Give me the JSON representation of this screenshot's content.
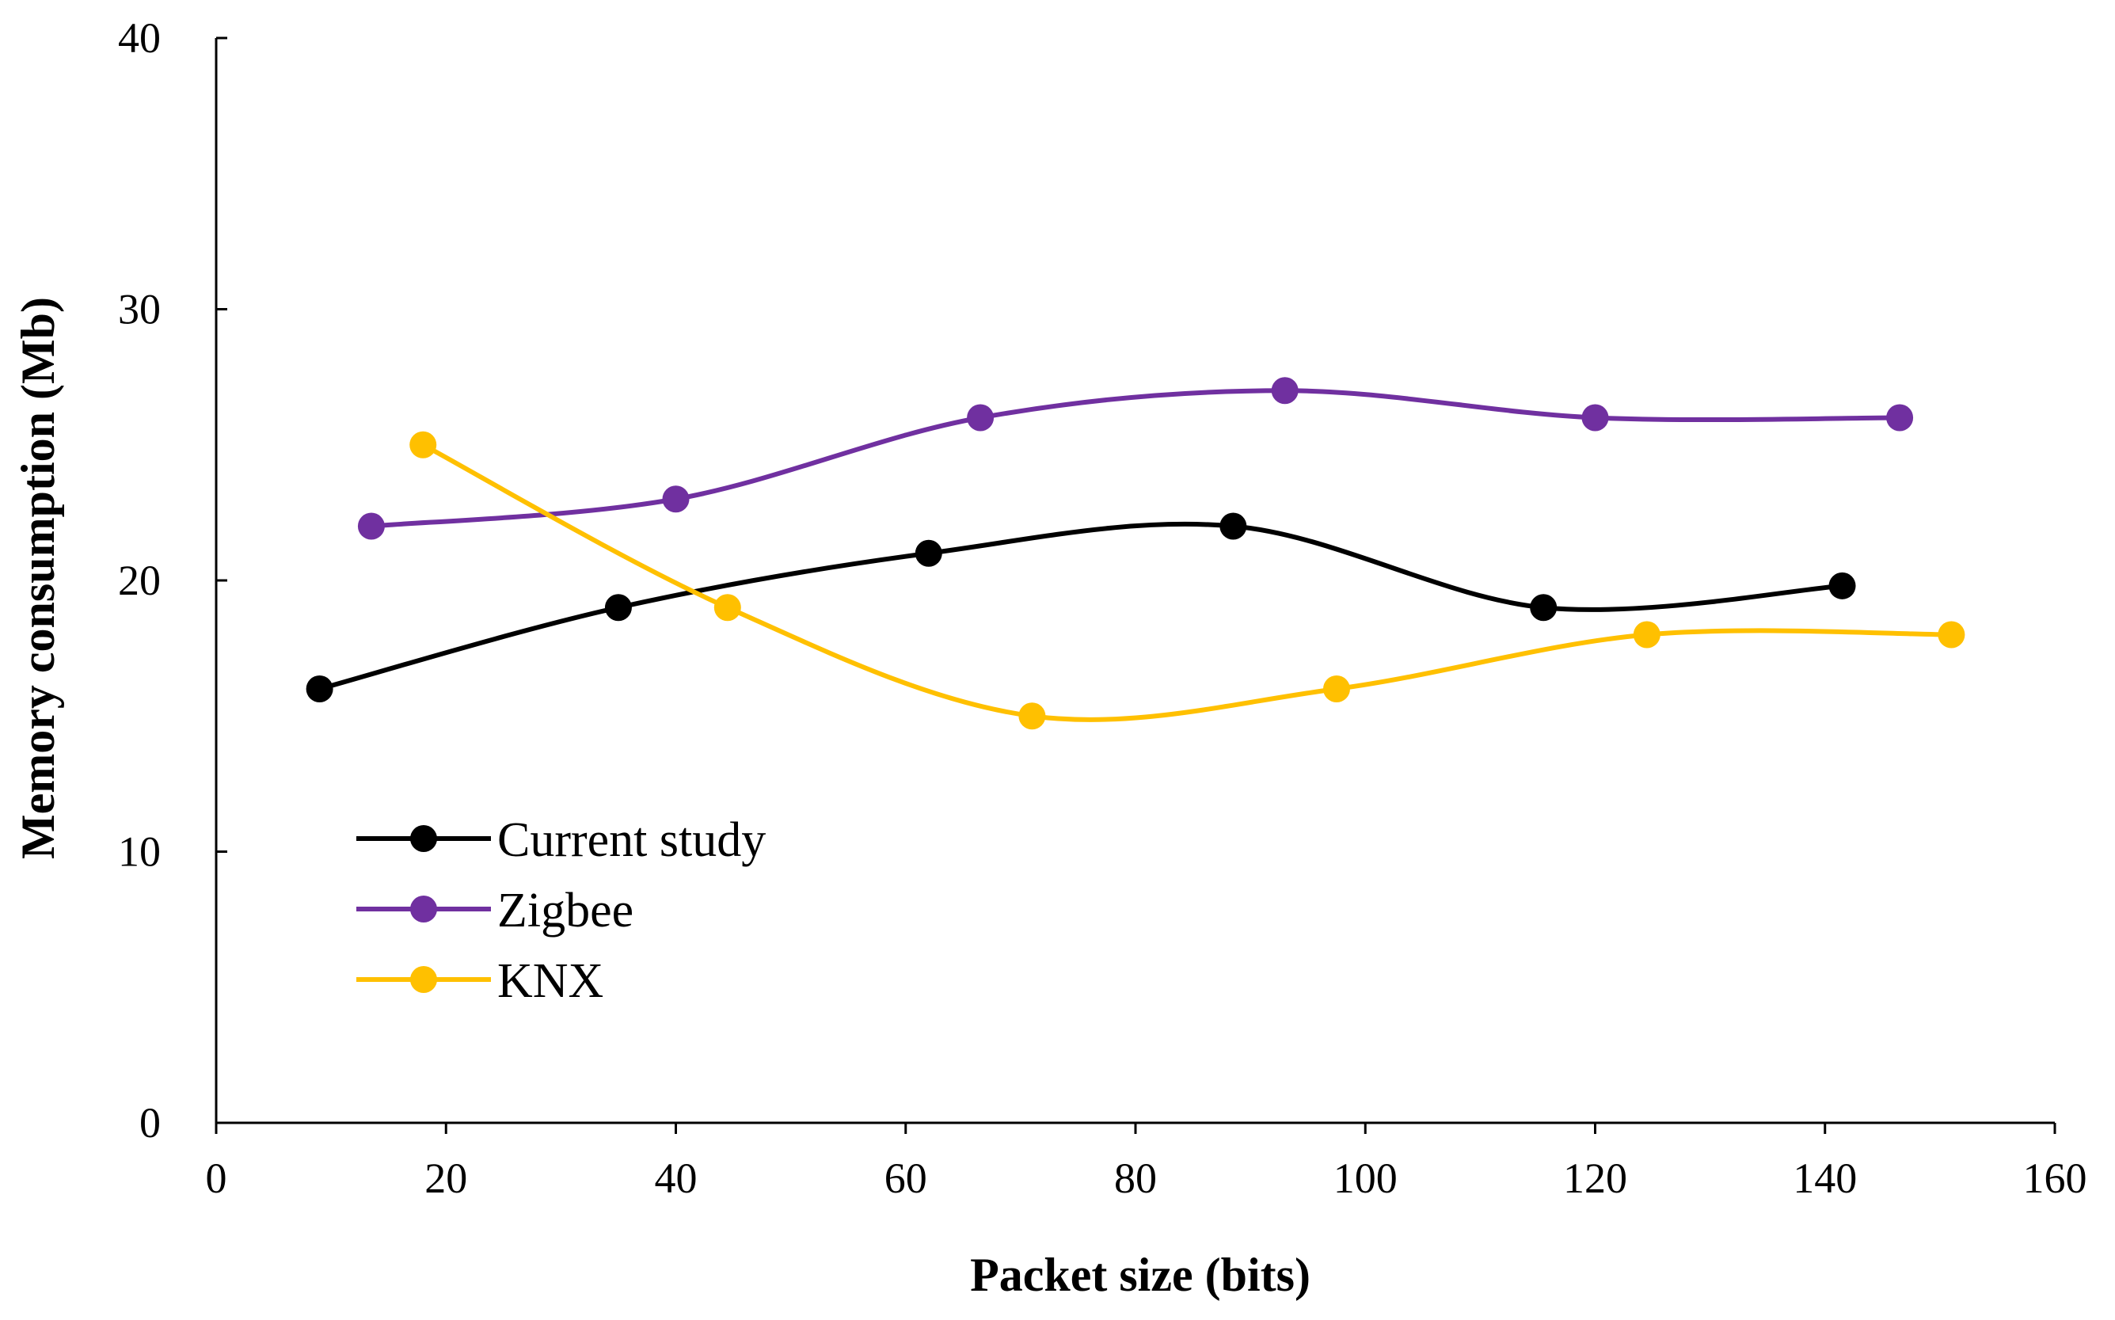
{
  "chart_data": {
    "type": "line",
    "title": "",
    "xlabel": "Packet size (bits)",
    "ylabel": "Memory consumption (Mb)",
    "xlim": [
      0,
      160
    ],
    "ylim": [
      0,
      40
    ],
    "xticks": [
      0,
      20,
      40,
      60,
      80,
      100,
      120,
      140,
      160
    ],
    "yticks": [
      0,
      10,
      20,
      30,
      40
    ],
    "xtick_labels": [
      "0",
      "20",
      "40",
      "60",
      "80",
      "100",
      "120",
      "140",
      "160"
    ],
    "ytick_labels": [
      "0",
      "10",
      "20",
      "30",
      "40"
    ],
    "grid": false,
    "smooth": true,
    "legend_position": "bottom-left",
    "series": [
      {
        "name": "Current study",
        "color": "#000000",
        "x": [
          9,
          35,
          62,
          88.5,
          115.5,
          141.5
        ],
        "y": [
          16,
          19,
          21,
          22,
          19,
          19.8
        ]
      },
      {
        "name": "Zigbee",
        "color": "#7030A0",
        "x": [
          13.5,
          40,
          66.5,
          93,
          120,
          146.5
        ],
        "y": [
          22,
          23,
          26,
          27,
          26,
          26
        ]
      },
      {
        "name": "KNX",
        "color": "#FFC000",
        "x": [
          18,
          44.5,
          71,
          97.5,
          124.5,
          151
        ],
        "y": [
          25,
          19,
          15,
          16,
          18,
          18
        ]
      }
    ]
  }
}
